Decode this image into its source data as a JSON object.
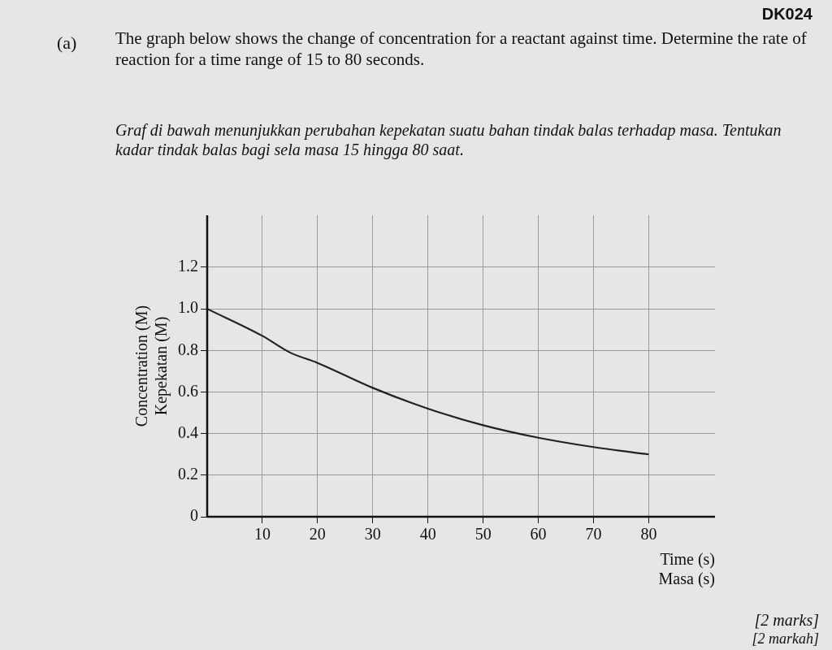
{
  "chart_data": {
    "type": "line",
    "title": "The graph below shows the change of concentration for a reactant against time. Determine the rate of reaction for a time range of 15 to 80 seconds.",
    "subtitle": "Graf di bawah menunjukkan perubahan kepekatan suatu bahan tindak balas terhadap masa. Tentukan kadar tindak balas bagi sela masa 15 hingga 80 saat.",
    "annotations": [
      "DK024",
      "(a)",
      "[2 marks]",
      "[2 markah]"
    ],
    "xlabel": "Time (s)\nMasa (s)",
    "ylabel": "Concentration (M)\nKepekatan (M)",
    "x": [
      0,
      10,
      15,
      20,
      30,
      40,
      50,
      60,
      70,
      80
    ],
    "series": [
      {
        "color": "#222222",
        "values": [
          1.0,
          0.87,
          0.79,
          0.74,
          0.62,
          0.52,
          0.44,
          0.38,
          0.335,
          0.3
        ]
      }
    ],
    "xlim": [
      0,
      92
    ],
    "xticks": [
      10,
      20,
      30,
      40,
      50,
      60,
      70,
      80
    ],
    "ylim": [
      0,
      1.45
    ],
    "yticks": [
      0,
      0.2,
      0.4,
      0.6,
      0.8,
      {
        "value": 1,
        "label": "1.0"
      },
      1.2
    ],
    "grid": true,
    "legend": false,
    "marker": "none",
    "line_style": "solid"
  }
}
